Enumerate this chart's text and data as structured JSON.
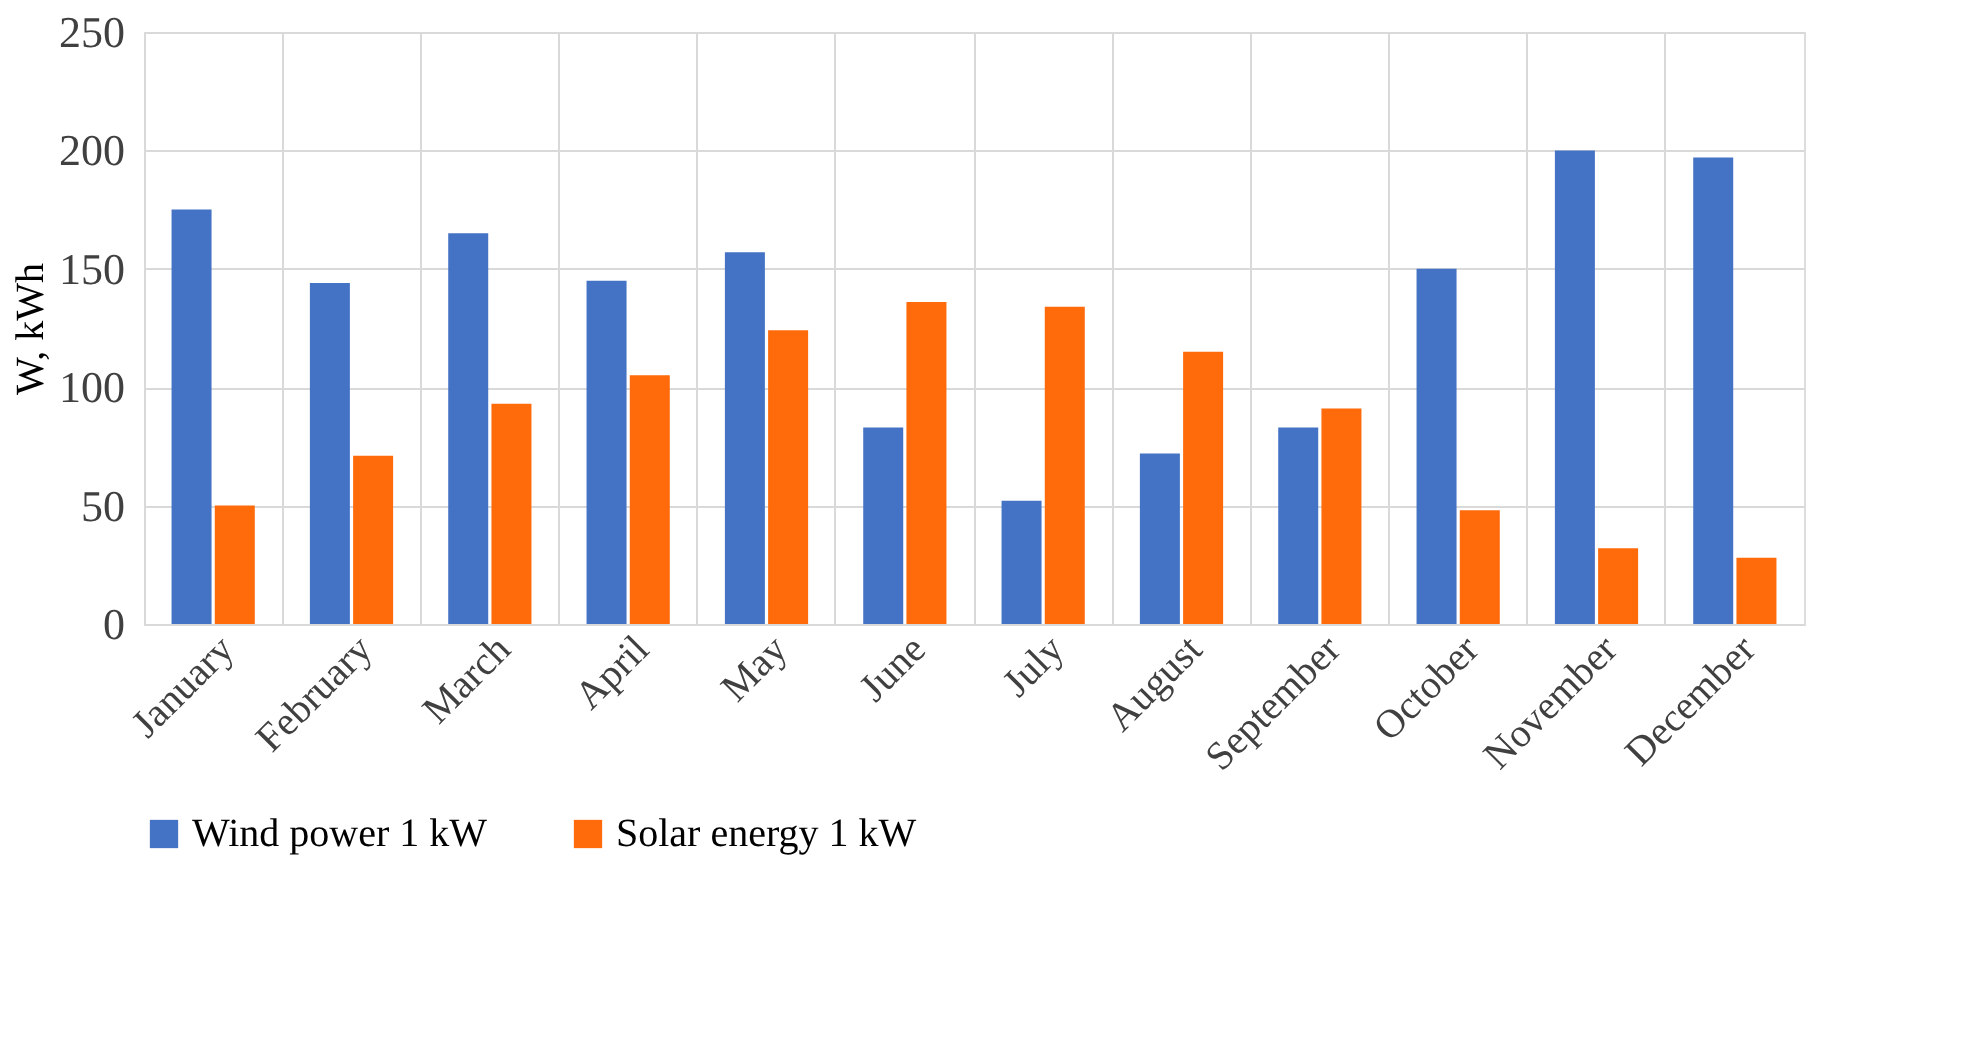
{
  "chart_data": {
    "type": "bar",
    "ylabel": "W, kWh",
    "categories": [
      "January",
      "February",
      "March",
      "April",
      "May",
      "June",
      "July",
      "August",
      "September",
      "October",
      "November",
      "December"
    ],
    "series": [
      {
        "name": "Wind power 1 kW",
        "color": "#4472c4",
        "values": [
          175,
          144,
          165,
          145,
          157,
          83,
          52,
          72,
          83,
          150,
          200,
          197
        ]
      },
      {
        "name": "Solar energy 1 kW",
        "color": "#ff6a0a",
        "values": [
          50,
          71,
          93,
          105,
          124,
          136,
          134,
          115,
          91,
          48,
          32,
          28
        ]
      }
    ],
    "ylim": [
      0,
      250
    ],
    "yticks": [
      0,
      50,
      100,
      150,
      200,
      250
    ],
    "grid": true,
    "legend": "bottom"
  }
}
